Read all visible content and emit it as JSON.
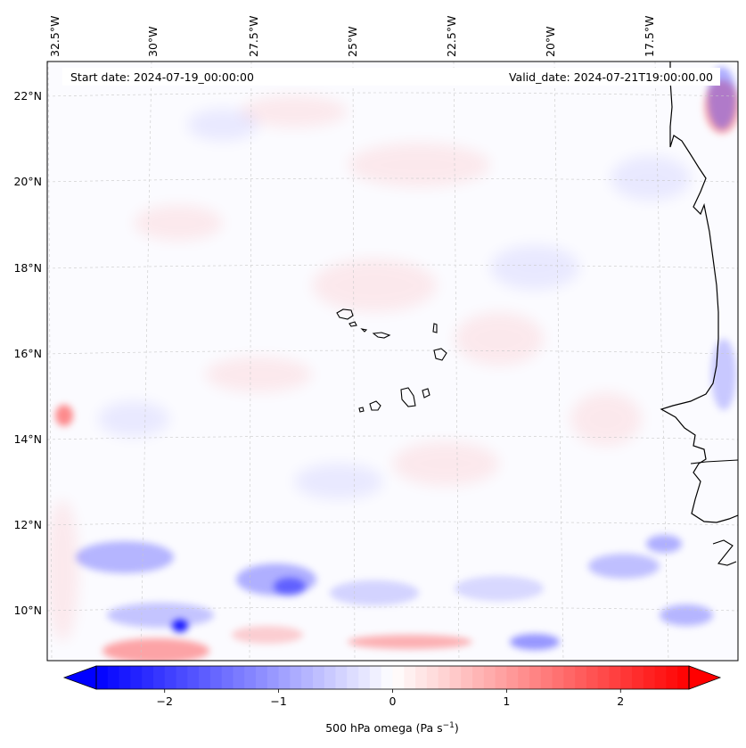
{
  "map": {
    "start_date": "Start date: 2024-07-19_00:00:00",
    "valid_date": "Valid_date: 2024-07-21T19:00:00.00",
    "lon_labels": [
      "32.5°W",
      "30°W",
      "27.5°W",
      "25°W",
      "22.5°W",
      "20°W",
      "17.5°W"
    ],
    "lat_labels": [
      "22°N",
      "20°N",
      "18°N",
      "16°N",
      "14°N",
      "12°N",
      "10°N"
    ]
  },
  "colorbar": {
    "title": "500 hPa omega (Pa s",
    "title_sup": "−1",
    "title_end": ")",
    "ticks": [
      "−2",
      "−1",
      "0",
      "1",
      "2"
    ],
    "tick_values": [
      -2,
      -1,
      0,
      1,
      2
    ],
    "range": [
      -2.6,
      2.6
    ],
    "color_negative": "#0000ff",
    "color_zero": "#ffffff",
    "color_positive": "#ff0000"
  }
}
